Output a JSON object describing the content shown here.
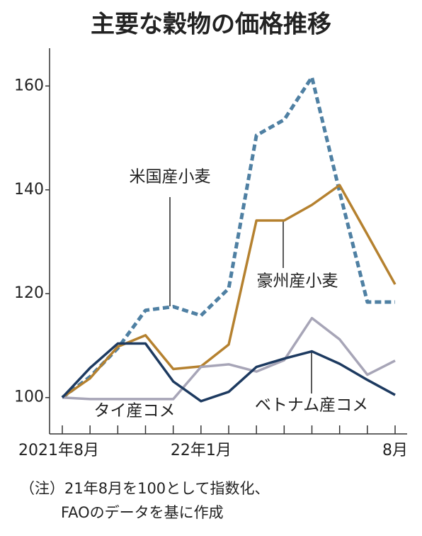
{
  "chart_data": {
    "type": "line",
    "title": "主要な穀物の価格推移",
    "categories": [
      "2021年8月",
      null,
      null,
      null,
      null,
      "22年1月",
      null,
      null,
      null,
      null,
      null,
      null,
      "8月"
    ],
    "series": [
      {
        "name": "米国産小麦",
        "color": "#4f80a3",
        "dashed": true,
        "values": [
          100,
          104,
          109.5,
          116.8,
          117.5,
          115.8,
          121,
          150.5,
          153.5,
          161.7,
          139.6,
          118.4,
          118.4
        ]
      },
      {
        "name": "豪州産小麦",
        "color": "#b5812f",
        "dashed": false,
        "values": [
          100,
          103.7,
          109.8,
          112,
          105.5,
          106,
          110.2,
          134.1,
          134.1,
          137.1,
          140.9,
          131.4,
          121.8
        ]
      },
      {
        "name": "タイ産コメ",
        "color": "#a7a5b7",
        "dashed": false,
        "values": [
          100,
          99.7,
          99.7,
          99.7,
          99.7,
          105.9,
          106.4,
          105,
          107.2,
          115.3,
          111.2,
          104.4,
          107.1
        ]
      },
      {
        "name": "ベトナム産コメ",
        "color": "#1d3a60",
        "dashed": false,
        "values": [
          100,
          105.7,
          110.4,
          110.4,
          103.1,
          99.3,
          101.1,
          105.9,
          107.5,
          108.9,
          106.5,
          103.4,
          100.5
        ]
      }
    ],
    "ylim": [
      93,
      167
    ],
    "yticks": [
      100,
      120,
      140,
      160
    ],
    "grid": false,
    "note": [
      "（注）21年8月を100として指数化、",
      "FAOのデータを基に作成"
    ]
  }
}
